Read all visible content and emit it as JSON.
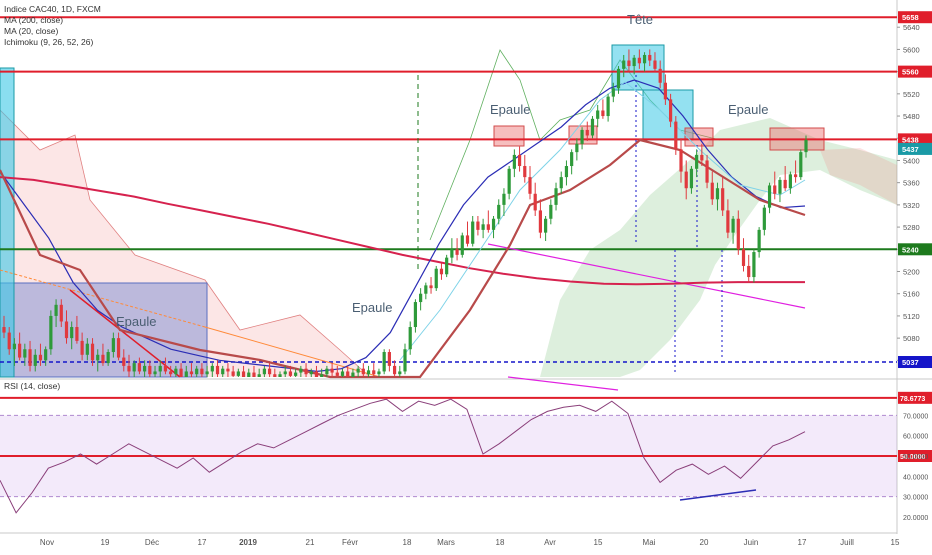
{
  "chart_data": {
    "type": "candlestick",
    "legend": {
      "symbol": "Indice CAC40, 1D, FXCM",
      "ma200": "MA (200, close)",
      "ma20": "MA (20, close)",
      "ichimoku": "Ichimoku (9, 26, 52, 26)",
      "rsi": "RSI (14, close)"
    },
    "price_axis": {
      "range": [
        5010,
        5680
      ],
      "ticks": [
        5040,
        5080,
        5120,
        5160,
        5200,
        5240,
        5280,
        5320,
        5360,
        5400,
        5440,
        5480,
        5520,
        5560,
        5600,
        5640
      ]
    },
    "rsi_axis": {
      "range": [
        15,
        85
      ],
      "ticks": [
        "20.0000",
        "30.0000",
        "40.0000",
        "50.0000",
        "60.0000",
        "70.0000"
      ]
    },
    "time_axis": [
      "Nov",
      "19",
      "Déc",
      "17",
      "2019",
      "21",
      "Févr",
      "18",
      "Mars",
      "18",
      "Avr",
      "15",
      "Mai",
      "20",
      "Juin",
      "17",
      "Juill",
      "15"
    ],
    "levels": [
      {
        "label": "5658",
        "value": 5658,
        "color": "#e01e2b"
      },
      {
        "label": "5560",
        "value": 5560,
        "color": "#e01e2b"
      },
      {
        "label": "5438",
        "value": 5438,
        "color": "#e01e2b"
      },
      {
        "label": "5240",
        "value": 5240,
        "color": "#1d7a1d"
      },
      {
        "label": "5037",
        "value": 5037,
        "color": "#1515c9"
      }
    ],
    "last_price": {
      "label": "5437",
      "value": 5437,
      "color": "#1a9aa6"
    },
    "rsi_levels": [
      {
        "label": "78.6773",
        "value": 78.6773
      },
      {
        "label": "50.0000",
        "value": 50.0
      }
    ],
    "annotations": [
      "Epaule",
      "Tête",
      "Epaule",
      "Epaule",
      "Epaule"
    ],
    "candles": [
      [
        5100,
        5120,
        5080,
        5090
      ],
      [
        5090,
        5100,
        5050,
        5060
      ],
      [
        5060,
        5080,
        5030,
        5070
      ],
      [
        5070,
        5090,
        5040,
        5045
      ],
      [
        5045,
        5070,
        5030,
        5060
      ],
      [
        5060,
        5075,
        5020,
        5030
      ],
      [
        5030,
        5060,
        5020,
        5050
      ],
      [
        5050,
        5070,
        5030,
        5040
      ],
      [
        5040,
        5065,
        5030,
        5060
      ],
      [
        5060,
        5130,
        5050,
        5120
      ],
      [
        5120,
        5150,
        5100,
        5140
      ],
      [
        5140,
        5150,
        5100,
        5110
      ],
      [
        5110,
        5130,
        5070,
        5080
      ],
      [
        5080,
        5110,
        5060,
        5100
      ],
      [
        5100,
        5120,
        5070,
        5075
      ],
      [
        5075,
        5090,
        5040,
        5050
      ],
      [
        5050,
        5080,
        5040,
        5070
      ],
      [
        5070,
        5080,
        5030,
        5040
      ],
      [
        5040,
        5060,
        5020,
        5050
      ],
      [
        5050,
        5070,
        5030,
        5035
      ],
      [
        5035,
        5060,
        5030,
        5055
      ],
      [
        5055,
        5090,
        5045,
        5080
      ],
      [
        5080,
        5090,
        5040,
        5045
      ],
      [
        5045,
        5060,
        5020,
        5030
      ],
      [
        5030,
        5050,
        5010,
        5020
      ],
      [
        5020,
        5040,
        5010,
        5035
      ],
      [
        5035,
        5045,
        5015,
        5020
      ],
      [
        5020,
        5040,
        5010,
        5030
      ],
      [
        5030,
        5040,
        5010,
        5015
      ],
      [
        5015,
        5030,
        5005,
        5020
      ],
      [
        5020,
        5040,
        5010,
        5030
      ],
      [
        5030,
        5045,
        5015,
        5020
      ],
      [
        5020,
        5030,
        5005,
        5015
      ],
      [
        5015,
        5030,
        5005,
        5025
      ],
      [
        5025,
        5035,
        5005,
        5010
      ],
      [
        5010,
        5030,
        5005,
        5020
      ],
      [
        5020,
        5035,
        5010,
        5015
      ],
      [
        5015,
        5030,
        5005,
        5025
      ],
      [
        5025,
        5035,
        5010,
        5015
      ],
      [
        5015,
        5030,
        5005,
        5020
      ],
      [
        5020,
        5035,
        5010,
        5030
      ],
      [
        5030,
        5040,
        5010,
        5015
      ],
      [
        5015,
        5030,
        5005,
        5025
      ],
      [
        5025,
        5035,
        5010,
        5020
      ],
      [
        5020,
        5030,
        5005,
        5012
      ],
      [
        5012,
        5025,
        5005,
        5020
      ],
      [
        5020,
        5030,
        5005,
        5010
      ],
      [
        5010,
        5025,
        5005,
        5018
      ],
      [
        5018,
        5030,
        5005,
        5010
      ],
      [
        5010,
        5025,
        5005,
        5015
      ],
      [
        5015,
        5030,
        5010,
        5025
      ],
      [
        5025,
        5035,
        5010,
        5015
      ],
      [
        5015,
        5025,
        5005,
        5010
      ],
      [
        5010,
        5020,
        5005,
        5015
      ],
      [
        5015,
        5030,
        5005,
        5020
      ],
      [
        5020,
        5030,
        5005,
        5012
      ],
      [
        5012,
        5025,
        5005,
        5018
      ],
      [
        5018,
        5030,
        5010,
        5025
      ],
      [
        5025,
        5035,
        5010,
        5015
      ],
      [
        5015,
        5025,
        5005,
        5020
      ],
      [
        5020,
        5030,
        5005,
        5010
      ],
      [
        5010,
        5025,
        5005,
        5015
      ],
      [
        5015,
        5030,
        5010,
        5025
      ],
      [
        5025,
        5035,
        5010,
        5018
      ],
      [
        5018,
        5030,
        5005,
        5012
      ],
      [
        5012,
        5025,
        5005,
        5020
      ],
      [
        5020,
        5030,
        5005,
        5010
      ],
      [
        5010,
        5025,
        5005,
        5018
      ],
      [
        5018,
        5030,
        5010,
        5025
      ],
      [
        5025,
        5035,
        5010,
        5015
      ],
      [
        5015,
        5030,
        5005,
        5022
      ],
      [
        5022,
        5035,
        5010,
        5015
      ],
      [
        5015,
        5025,
        5005,
        5020
      ],
      [
        5020,
        5060,
        5015,
        5055
      ],
      [
        5055,
        5060,
        5020,
        5030
      ],
      [
        5030,
        5040,
        5005,
        5015
      ],
      [
        5015,
        5030,
        5005,
        5020
      ],
      [
        5020,
        5070,
        5015,
        5060
      ],
      [
        5060,
        5110,
        5050,
        5100
      ],
      [
        5100,
        5150,
        5090,
        5145
      ],
      [
        5145,
        5170,
        5130,
        5160
      ],
      [
        5160,
        5180,
        5150,
        5175
      ],
      [
        5175,
        5190,
        5160,
        5170
      ],
      [
        5170,
        5210,
        5165,
        5205
      ],
      [
        5205,
        5215,
        5185,
        5195
      ],
      [
        5195,
        5230,
        5190,
        5225
      ],
      [
        5225,
        5260,
        5215,
        5240
      ],
      [
        5240,
        5260,
        5220,
        5230
      ],
      [
        5230,
        5270,
        5225,
        5265
      ],
      [
        5265,
        5290,
        5245,
        5250
      ],
      [
        5250,
        5300,
        5245,
        5290
      ],
      [
        5290,
        5300,
        5265,
        5275
      ],
      [
        5275,
        5295,
        5260,
        5285
      ],
      [
        5285,
        5310,
        5270,
        5275
      ],
      [
        5275,
        5300,
        5260,
        5295
      ],
      [
        5295,
        5330,
        5285,
        5320
      ],
      [
        5320,
        5350,
        5300,
        5340
      ],
      [
        5340,
        5390,
        5330,
        5385
      ],
      [
        5385,
        5420,
        5370,
        5410
      ],
      [
        5410,
        5425,
        5380,
        5390
      ],
      [
        5390,
        5410,
        5360,
        5370
      ],
      [
        5370,
        5390,
        5330,
        5340
      ],
      [
        5340,
        5360,
        5300,
        5310
      ],
      [
        5310,
        5330,
        5260,
        5270
      ],
      [
        5270,
        5300,
        5255,
        5295
      ],
      [
        5295,
        5330,
        5285,
        5320
      ],
      [
        5320,
        5360,
        5310,
        5350
      ],
      [
        5350,
        5380,
        5340,
        5370
      ],
      [
        5370,
        5400,
        5355,
        5390
      ],
      [
        5390,
        5420,
        5375,
        5415
      ],
      [
        5415,
        5440,
        5400,
        5430
      ],
      [
        5430,
        5460,
        5420,
        5455
      ],
      [
        5455,
        5470,
        5435,
        5445
      ],
      [
        5445,
        5480,
        5440,
        5475
      ],
      [
        5475,
        5500,
        5460,
        5490
      ],
      [
        5490,
        5510,
        5475,
        5480
      ],
      [
        5480,
        5520,
        5470,
        5515
      ],
      [
        5515,
        5540,
        5505,
        5530
      ],
      [
        5530,
        5570,
        5520,
        5565
      ],
      [
        5565,
        5590,
        5550,
        5580
      ],
      [
        5580,
        5600,
        5560,
        5570
      ],
      [
        5570,
        5590,
        5555,
        5585
      ],
      [
        5585,
        5600,
        5565,
        5575
      ],
      [
        5575,
        5595,
        5560,
        5590
      ],
      [
        5590,
        5600,
        5570,
        5580
      ],
      [
        5580,
        5595,
        5560,
        5565
      ],
      [
        5565,
        5580,
        5530,
        5540
      ],
      [
        5540,
        5555,
        5500,
        5510
      ],
      [
        5510,
        5520,
        5460,
        5470
      ],
      [
        5470,
        5480,
        5410,
        5420
      ],
      [
        5420,
        5440,
        5360,
        5380
      ],
      [
        5380,
        5400,
        5330,
        5350
      ],
      [
        5350,
        5390,
        5340,
        5385
      ],
      [
        5385,
        5420,
        5370,
        5410
      ],
      [
        5410,
        5430,
        5390,
        5400
      ],
      [
        5400,
        5410,
        5350,
        5360
      ],
      [
        5360,
        5380,
        5320,
        5330
      ],
      [
        5330,
        5360,
        5310,
        5350
      ],
      [
        5350,
        5370,
        5300,
        5310
      ],
      [
        5310,
        5330,
        5260,
        5270
      ],
      [
        5270,
        5300,
        5250,
        5295
      ],
      [
        5295,
        5310,
        5230,
        5240
      ],
      [
        5240,
        5260,
        5200,
        5210
      ],
      [
        5210,
        5230,
        5180,
        5190
      ],
      [
        5190,
        5240,
        5180,
        5235
      ],
      [
        5235,
        5280,
        5225,
        5275
      ],
      [
        5275,
        5320,
        5265,
        5315
      ],
      [
        5315,
        5360,
        5305,
        5355
      ],
      [
        5355,
        5380,
        5330,
        5340
      ],
      [
        5340,
        5370,
        5325,
        5365
      ],
      [
        5365,
        5390,
        5345,
        5350
      ],
      [
        5350,
        5380,
        5340,
        5375
      ],
      [
        5375,
        5400,
        5360,
        5370
      ],
      [
        5370,
        5420,
        5365,
        5415
      ],
      [
        5415,
        5445,
        5405,
        5437
      ]
    ],
    "ma200": [
      5370,
      5365,
      5355,
      5345,
      5335,
      5322,
      5310,
      5298,
      5286,
      5272,
      5258,
      5244,
      5230,
      5218,
      5206,
      5196,
      5188,
      5182,
      5178,
      5177,
      5178,
      5180,
      5181,
      5181,
      5181
    ],
    "ma20": [
      5380,
      5320,
      5260,
      5180,
      5130,
      5100,
      5080,
      5060,
      5050,
      5040,
      5035,
      5030,
      5025,
      5020,
      5025,
      5045,
      5090,
      5170,
      5250,
      5320,
      5370,
      5400,
      5430,
      5460,
      5500,
      5530,
      5545,
      5530,
      5480,
      5420,
      5370,
      5335,
      5315,
      5318
    ],
    "rsi": [
      38,
      22,
      32,
      44,
      47,
      51,
      46,
      51,
      56,
      52,
      48,
      44,
      49,
      42,
      47,
      52,
      56,
      54,
      58,
      62,
      66,
      70,
      73,
      76,
      78,
      72,
      77,
      75,
      78,
      73,
      51,
      56,
      62,
      68,
      72,
      74,
      75,
      72,
      77,
      71,
      49,
      37,
      43,
      46,
      41,
      45,
      39,
      47,
      55,
      58,
      62
    ]
  }
}
